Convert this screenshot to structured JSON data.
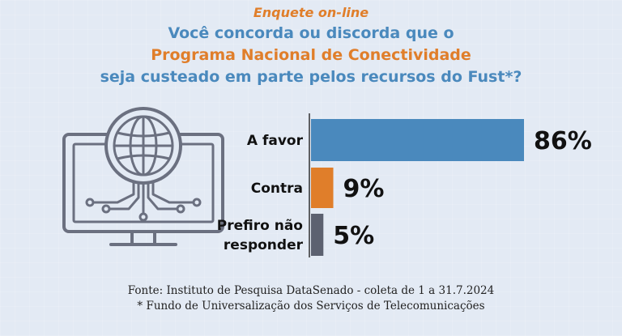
{
  "header": {
    "kicker": "Enquete on-line",
    "question_line1": "Você concorda ou discorda que o",
    "question_line2": "Programa Nacional de Conectividade",
    "question_line3": "seja custeado em parte pelos recursos do Fust*?"
  },
  "icon": {
    "name": "computer-globe-icon"
  },
  "chart_data": {
    "type": "bar",
    "orientation": "horizontal",
    "categories": [
      "A favor",
      "Contra",
      "Prefiro não responder"
    ],
    "category_lines": [
      [
        "A favor"
      ],
      [
        "Contra"
      ],
      [
        "Prefiro não",
        "responder"
      ]
    ],
    "values": [
      86,
      9,
      5
    ],
    "value_labels": [
      "86%",
      "9%",
      "5%"
    ],
    "colors": [
      "#4a89bd",
      "#e07e2a",
      "#5c6170"
    ],
    "xlim": [
      0,
      100
    ]
  },
  "footer": {
    "source": "Fonte: Instituto de Pesquisa DataSenado - coleta de 1 a 31.7.2024",
    "note": "* Fundo de Universalização dos Serviços de Telecomunicações"
  }
}
